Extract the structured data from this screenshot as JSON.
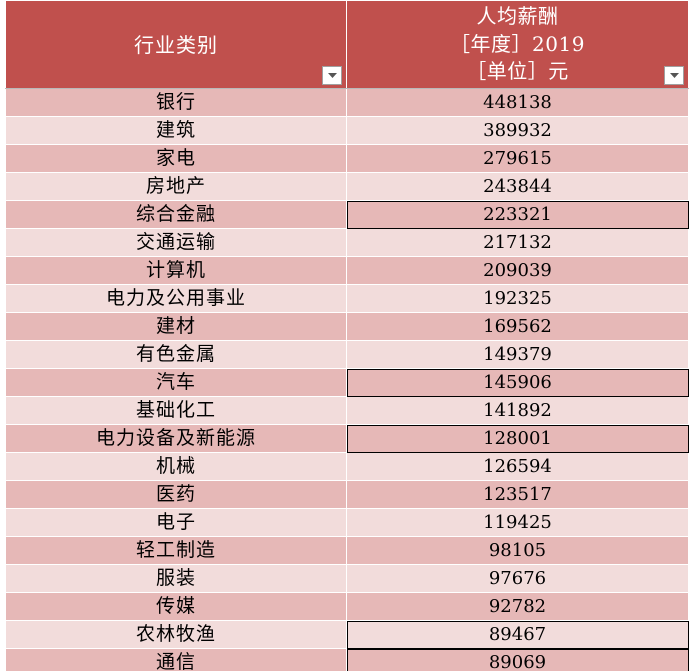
{
  "sheet": {
    "header": {
      "category_label": "行业类别",
      "salary_title": "人均薪酬",
      "salary_year": "［年度］2019",
      "salary_unit": "［单位］元"
    },
    "rows": [
      {
        "category": "银行",
        "salary": "448138"
      },
      {
        "category": "建筑",
        "salary": "389932"
      },
      {
        "category": "家电",
        "salary": "279615"
      },
      {
        "category": "房地产",
        "salary": "243844"
      },
      {
        "category": "综合金融",
        "salary": "223321"
      },
      {
        "category": "交通运输",
        "salary": "217132"
      },
      {
        "category": "计算机",
        "salary": "209039"
      },
      {
        "category": "电力及公用事业",
        "salary": "192325"
      },
      {
        "category": "建材",
        "salary": "169562"
      },
      {
        "category": "有色金属",
        "salary": "149379"
      },
      {
        "category": "汽车",
        "salary": "145906"
      },
      {
        "category": "基础化工",
        "salary": "141892"
      },
      {
        "category": "电力设备及新能源",
        "salary": "128001"
      },
      {
        "category": "机械",
        "salary": "126594"
      },
      {
        "category": "医药",
        "salary": "123517"
      },
      {
        "category": "电子",
        "salary": "119425"
      },
      {
        "category": "轻工制造",
        "salary": "98105"
      },
      {
        "category": "服装",
        "salary": "97676"
      },
      {
        "category": "传媒",
        "salary": "92782"
      },
      {
        "category": "农林牧渔",
        "salary": "89467"
      },
      {
        "category": "通信",
        "salary": "89069"
      }
    ],
    "colors": {
      "header_bg": "#c0504d",
      "row_dark": "#e6b8b7",
      "row_light": "#f2dcdb"
    },
    "icons": {
      "filter": "filter-dropdown-icon"
    }
  }
}
